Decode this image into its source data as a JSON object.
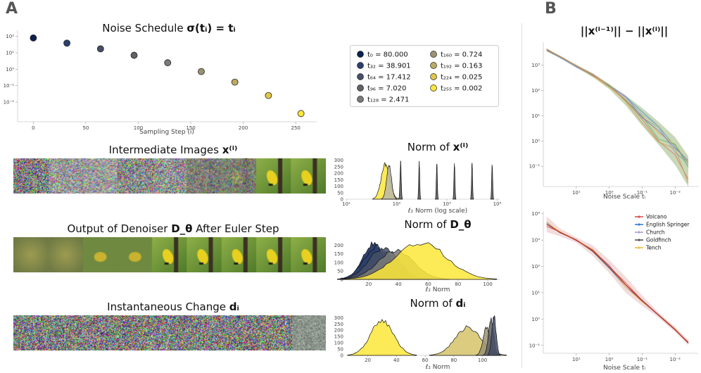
{
  "panel_labels": {
    "a": "A",
    "b": "B"
  },
  "schedule": {
    "title_plain": "Noise Schedule ",
    "title_math": "σ(tᵢ) = tᵢ",
    "xlabel": "Sampling Step (i)",
    "xticks": [
      "0",
      "50",
      "100",
      "150",
      "200",
      "250"
    ],
    "yticks": [
      "10²",
      "10¹",
      "10⁰",
      "10⁻¹",
      "10⁻²"
    ]
  },
  "legend": [
    {
      "label": "t₀ = 80.000",
      "color": "#0b2150"
    },
    {
      "label": "t₃₂ = 38.901",
      "color": "#2a3f6e"
    },
    {
      "label": "t₆₄ = 17.412",
      "color": "#454f66"
    },
    {
      "label": "t₉₆ = 7.020",
      "color": "#5f6266"
    },
    {
      "label": "t₁₂₈ = 2.471",
      "color": "#7a7a78"
    },
    {
      "label": "t₁₆₀ = 0.724",
      "color": "#9a9272"
    },
    {
      "label": "t₁₉₂ = 0.163",
      "color": "#bcab62"
    },
    {
      "label": "t₂₂₄ = 0.025",
      "color": "#e0c64a"
    },
    {
      "label": "t₂₅₅ = 0.002",
      "color": "#fce63a"
    }
  ],
  "rows": [
    {
      "title_plain": "Intermediate Images ",
      "title_math": "x⁽ⁱ⁾"
    },
    {
      "title_plain": "Output of Denoiser ",
      "title_math": "D_θ",
      "title_suffix": " After Euler Step"
    },
    {
      "title_plain": "Instantaneous Change ",
      "title_math": "dᵢ"
    }
  ],
  "norm_x": {
    "title_plain": "Norm of ",
    "title_math": "x⁽ⁱ⁾",
    "xlabel": "ℓ₂ Norm (log scale)",
    "xticks": [
      "10¹",
      "10²",
      "10³",
      "10⁴"
    ],
    "yticks": [
      "300",
      "250",
      "200",
      "150",
      "100",
      "50",
      "0"
    ]
  },
  "norm_d": {
    "title_plain": "Norm of ",
    "title_math": "D_θ",
    "xlabel": "ℓ₂ Norm",
    "xticks": [
      "20",
      "40",
      "60",
      "80",
      "100"
    ],
    "yticks": [
      "200",
      "150",
      "100",
      "50",
      "0"
    ]
  },
  "norm_di": {
    "title_plain": "Norm of ",
    "title_math": "dᵢ",
    "xlabel": "ℓ₂ Norm",
    "xticks": [
      "20",
      "40",
      "60",
      "80",
      "100"
    ],
    "yticks": [
      "300",
      "250",
      "200",
      "150",
      "100",
      "50",
      "0"
    ]
  },
  "diff_plot": {
    "title": "||x⁽ⁱ⁻¹⁾|| − ||x⁽ⁱ⁾||",
    "xlabel": "Noise Scale tᵢ",
    "xticks": [
      "10¹",
      "10⁰",
      "10⁻¹",
      "10⁻²"
    ],
    "yticks": [
      "10³",
      "10²",
      "10¹",
      "10⁰",
      "10⁻¹"
    ]
  },
  "b_bottom": {
    "xlabel": "Noise Scale tᵢ",
    "xticks": [
      "10¹",
      "10⁰",
      "10⁻¹",
      "10⁻²"
    ],
    "yticks": [
      "10⁴",
      "10³",
      "10²",
      "10¹",
      "10⁰",
      "10⁻¹"
    ],
    "legend": [
      {
        "label": "Volcano",
        "color": "#d9534f"
      },
      {
        "label": "English Springer",
        "color": "#3b7dd8"
      },
      {
        "label": "Church",
        "color": "#b39ddb"
      },
      {
        "label": "Goldfinch",
        "color": "#555555"
      },
      {
        "label": "Tench",
        "color": "#f0c040"
      }
    ]
  },
  "chart_data": [
    {
      "type": "scatter",
      "title": "Noise Schedule σ(tᵢ) = tᵢ",
      "xlabel": "Sampling Step (i)",
      "ylabel": "",
      "yscale": "log",
      "x": [
        0,
        32,
        64,
        96,
        128,
        160,
        192,
        224,
        255
      ],
      "y": [
        80.0,
        38.901,
        17.412,
        7.02,
        2.471,
        0.724,
        0.163,
        0.025,
        0.002
      ],
      "xlim": [
        -15,
        270
      ],
      "ylim_log10": [
        -3.2,
        2.2
      ]
    },
    {
      "type": "histogram",
      "title": "Norm of x⁽ⁱ⁾",
      "xlabel": "ℓ₂ Norm (log scale)",
      "xscale": "log",
      "xlim_log10": [
        1,
        4.05
      ],
      "ylim": [
        0,
        320
      ],
      "peaks": [
        {
          "center_log10": 1.78,
          "width": 0.085,
          "height": 290,
          "color": "#fce63a"
        },
        {
          "center_log10": 1.85,
          "width": 0.05,
          "height": 270,
          "color": "#b9b6a8"
        },
        {
          "center_log10": 2.08,
          "width": 0.012,
          "height": 300,
          "color": "#555555"
        },
        {
          "center_log10": 2.45,
          "width": 0.01,
          "height": 295,
          "color": "#555555"
        },
        {
          "center_log10": 2.8,
          "width": 0.01,
          "height": 290,
          "color": "#555555"
        },
        {
          "center_log10": 3.15,
          "width": 0.01,
          "height": 285,
          "color": "#555555"
        },
        {
          "center_log10": 3.5,
          "width": 0.01,
          "height": 285,
          "color": "#555555"
        },
        {
          "center_log10": 3.9,
          "width": 0.01,
          "height": 280,
          "color": "#555555"
        }
      ]
    },
    {
      "type": "histogram",
      "title": "Norm of D_θ",
      "xlabel": "ℓ₂ Norm",
      "xlim": [
        5,
        108
      ],
      "ylim": [
        0,
        260
      ],
      "peaks": [
        {
          "center": 23,
          "width": 7,
          "height": 225,
          "color": "#0b2150"
        },
        {
          "center": 26,
          "width": 9,
          "height": 210,
          "color": "#2a3f6e"
        },
        {
          "center": 30,
          "width": 10,
          "height": 200,
          "color": "#454f66"
        },
        {
          "center": 38,
          "width": 12,
          "height": 180,
          "color": "#7a7a78"
        },
        {
          "center": 55,
          "width": 17,
          "height": 235,
          "color": "#fce63a"
        }
      ]
    },
    {
      "type": "histogram",
      "title": "Norm of dᵢ",
      "xlabel": "ℓ₂ Norm",
      "xlim": [
        5,
        112
      ],
      "ylim": [
        0,
        330
      ],
      "peaks": [
        {
          "center": 30,
          "width": 8,
          "height": 300,
          "color": "#fce63a"
        },
        {
          "center": 90,
          "width": 9,
          "height": 240,
          "color": "#d6c36a"
        },
        {
          "center": 103,
          "width": 2.5,
          "height": 240,
          "color": "#9a9272"
        },
        {
          "center": 106,
          "width": 1.8,
          "height": 310,
          "color": "#5f6266"
        },
        {
          "center": 108,
          "width": 1.5,
          "height": 330,
          "color": "#454f66"
        }
      ]
    },
    {
      "type": "line",
      "title": "||x⁽ⁱ⁻¹⁾|| − ||x⁽ⁱ⁾||",
      "xlabel": "Noise Scale tᵢ",
      "xscale": "log-reversed",
      "yscale": "log",
      "x_log10": [
        1.9,
        1.4,
        1.0,
        0.5,
        0.0,
        -0.5,
        -1.0,
        -1.5,
        -2.0,
        -2.4
      ],
      "y_log10": [
        3.6,
        3.25,
        2.95,
        2.6,
        2.15,
        1.6,
        0.95,
        0.3,
        -0.4,
        -1.2
      ],
      "band_halfwidth_log10": [
        0.05,
        0.05,
        0.05,
        0.08,
        0.1,
        0.2,
        0.35,
        0.45,
        0.55,
        0.6
      ],
      "xlim_log10": [
        2.0,
        -2.7
      ],
      "ylim_log10": [
        -1.8,
        3.9
      ]
    },
    {
      "type": "line",
      "title": "",
      "xlabel": "Noise Scale tᵢ",
      "xscale": "log-reversed",
      "yscale": "log",
      "series_names": [
        "Volcano",
        "English Springer",
        "Church",
        "Goldfinch",
        "Tench"
      ],
      "x_log10": [
        1.9,
        1.5,
        1.0,
        0.5,
        0.0,
        -0.5,
        -1.0,
        -1.5,
        -2.0,
        -2.4
      ],
      "y_log10": [
        3.6,
        3.3,
        3.0,
        2.6,
        2.0,
        1.3,
        0.7,
        0.15,
        -0.4,
        -0.9
      ],
      "band_halfwidth_log10": [
        0.3,
        0.15,
        0.1,
        0.2,
        0.25,
        0.3,
        0.2,
        0.1,
        0.1,
        0.1
      ],
      "xlim_log10": [
        2.0,
        -2.7
      ],
      "ylim_log10": [
        -1.3,
        4.1
      ]
    }
  ]
}
